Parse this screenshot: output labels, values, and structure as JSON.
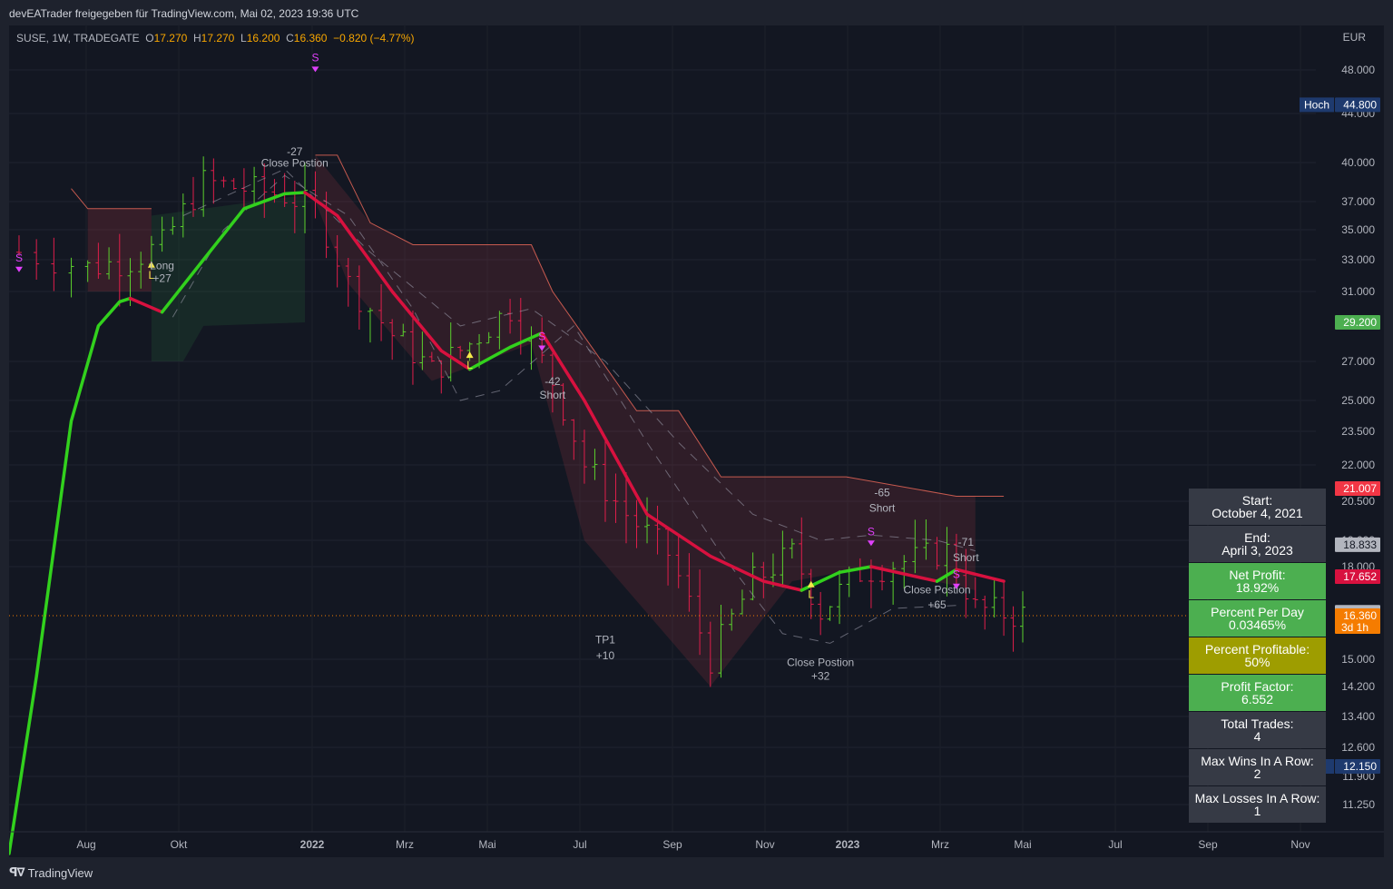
{
  "header": {
    "caption": "devEATrader freigegeben für TradingView.com, Mai 02, 2023 19:36 UTC"
  },
  "legend": {
    "symbol": "SUSE, 1W, TRADEGATE",
    "o_label": "O",
    "o_value": "17.270",
    "h_label": "H",
    "h_value": "17.270",
    "l_label": "L",
    "l_value": "16.200",
    "c_label": "C",
    "c_value": "16.360",
    "change": "−0.820 (−4.77%)"
  },
  "footer": {
    "brand": "TradingView"
  },
  "colors": {
    "bg": "#131722",
    "up": "#5bd02d",
    "down": "#e01e4b",
    "trend_up": "#32d11d",
    "trend_down": "#d8113f",
    "signal": "#e040fb",
    "long": "#f5e84a",
    "band": "#f06a5a"
  },
  "chart_data": {
    "type": "ohlc",
    "currency": "EUR",
    "y_ticks": [
      "48.000",
      "44.000",
      "40.000",
      "37.000",
      "35.000",
      "33.000",
      "31.000",
      "27.000",
      "25.000",
      "23.500",
      "22.000",
      "20.500",
      "19.000",
      "18.000",
      "15.000",
      "14.200",
      "13.400",
      "12.600",
      "11.900",
      "11.250"
    ],
    "x_ticks": [
      "Aug",
      "Okt",
      "2022",
      "Mrz",
      "Mai",
      "Jul",
      "Sep",
      "Nov",
      "2023",
      "Mrz",
      "Mai",
      "Jul",
      "Sep",
      "Nov"
    ],
    "price_labels": [
      {
        "text": "44.800",
        "tag": "Hoch",
        "price": 44.8,
        "color": "#1e3a6e"
      },
      {
        "text": "29.200",
        "tag": "",
        "price": 29.2,
        "color": "#4caf50"
      },
      {
        "text": "21.007",
        "tag": "",
        "price": 21.007,
        "color": "#f23645"
      },
      {
        "text": "18.833",
        "tag": "",
        "price": 18.833,
        "color": "#b2b5be"
      },
      {
        "text": "17.652",
        "tag": "",
        "price": 17.652,
        "color": "#d8113f"
      },
      {
        "text": "16.471",
        "tag": "",
        "price": 16.471,
        "color": "#b2b5be"
      },
      {
        "text": "16.360",
        "tag": "",
        "price": 16.36,
        "color": "#f57c00",
        "sub": "3d 1h"
      },
      {
        "text": "12.150",
        "tag": "Tief",
        "price": 12.15,
        "color": "#1e3a6e"
      }
    ],
    "last_price": 16.36,
    "annotations": [
      {
        "label": "S",
        "date": "2022-01-03",
        "price": 48.8,
        "kind": "s"
      },
      {
        "label": "S",
        "date": "2021-07-05",
        "price": 32.9,
        "kind": "s"
      },
      {
        "label": "L",
        "date": "2021-09-13",
        "price": 32.5,
        "kind": "l"
      },
      {
        "label": "Long",
        "date": "2021-09-20",
        "price": 32.4,
        "kind": "text"
      },
      {
        "label": "+27",
        "date": "2021-09-20",
        "price": 31.6,
        "kind": "text"
      },
      {
        "label": "-27",
        "date": "2021-12-20",
        "price": 40.6,
        "kind": "text"
      },
      {
        "label": "Close Postion",
        "date": "2021-12-20",
        "price": 39.7,
        "kind": "text"
      },
      {
        "label": "L",
        "date": "2022-04-18",
        "price": 27.2,
        "kind": "l"
      },
      {
        "label": "S",
        "date": "2022-06-06",
        "price": 28.2,
        "kind": "s"
      },
      {
        "label": "-42",
        "date": "2022-06-13",
        "price": 25.8,
        "kind": "text"
      },
      {
        "label": "Short",
        "date": "2022-06-13",
        "price": 25.1,
        "kind": "text"
      },
      {
        "label": "TP1",
        "date": "2022-07-18",
        "price": 15.5,
        "kind": "text"
      },
      {
        "label": "+10",
        "date": "2022-07-18",
        "price": 15.0,
        "kind": "text"
      },
      {
        "label": "L",
        "date": "2022-12-05",
        "price": 17.3,
        "kind": "l"
      },
      {
        "label": "Close Postion",
        "date": "2022-12-12",
        "price": 14.8,
        "kind": "text"
      },
      {
        "label": "+32",
        "date": "2022-12-12",
        "price": 14.4,
        "kind": "text"
      },
      {
        "label": "-65",
        "date": "2023-01-23",
        "price": 20.7,
        "kind": "text"
      },
      {
        "label": "Short",
        "date": "2023-01-23",
        "price": 20.1,
        "kind": "text"
      },
      {
        "label": "S",
        "date": "2023-01-16",
        "price": 19.2,
        "kind": "s"
      },
      {
        "label": "Close Postion",
        "date": "2023-02-27",
        "price": 17.1,
        "kind": "text"
      },
      {
        "label": "+65",
        "date": "2023-02-27",
        "price": 16.6,
        "kind": "text"
      },
      {
        "label": "-71",
        "date": "2023-03-20",
        "price": 18.8,
        "kind": "text"
      },
      {
        "label": "Short",
        "date": "2023-03-20",
        "price": 18.2,
        "kind": "text"
      },
      {
        "label": "S",
        "date": "2023-03-13",
        "price": 17.6,
        "kind": "s"
      }
    ]
  },
  "stats": [
    {
      "title": "Start:",
      "value": "October 4, 2021",
      "color": "#363a45"
    },
    {
      "title": "End:",
      "value": "April 3, 2023",
      "color": "#363a45"
    },
    {
      "title": "Net Profit:",
      "value": "18.92%",
      "color": "#4caf50"
    },
    {
      "title": "Percent Per Day",
      "value": "0.03465%",
      "color": "#4caf50"
    },
    {
      "title": "Percent Profitable:",
      "value": "50%",
      "color": "#9e9d00"
    },
    {
      "title": "Profit Factor:",
      "value": "6.552",
      "color": "#4caf50"
    },
    {
      "title": "Total Trades:",
      "value": "4",
      "color": "#363a45"
    },
    {
      "title": "Max Wins In A Row:",
      "value": "2",
      "color": "#363a45"
    },
    {
      "title": "Max Losses In A Row:",
      "value": "1",
      "color": "#363a45"
    }
  ]
}
